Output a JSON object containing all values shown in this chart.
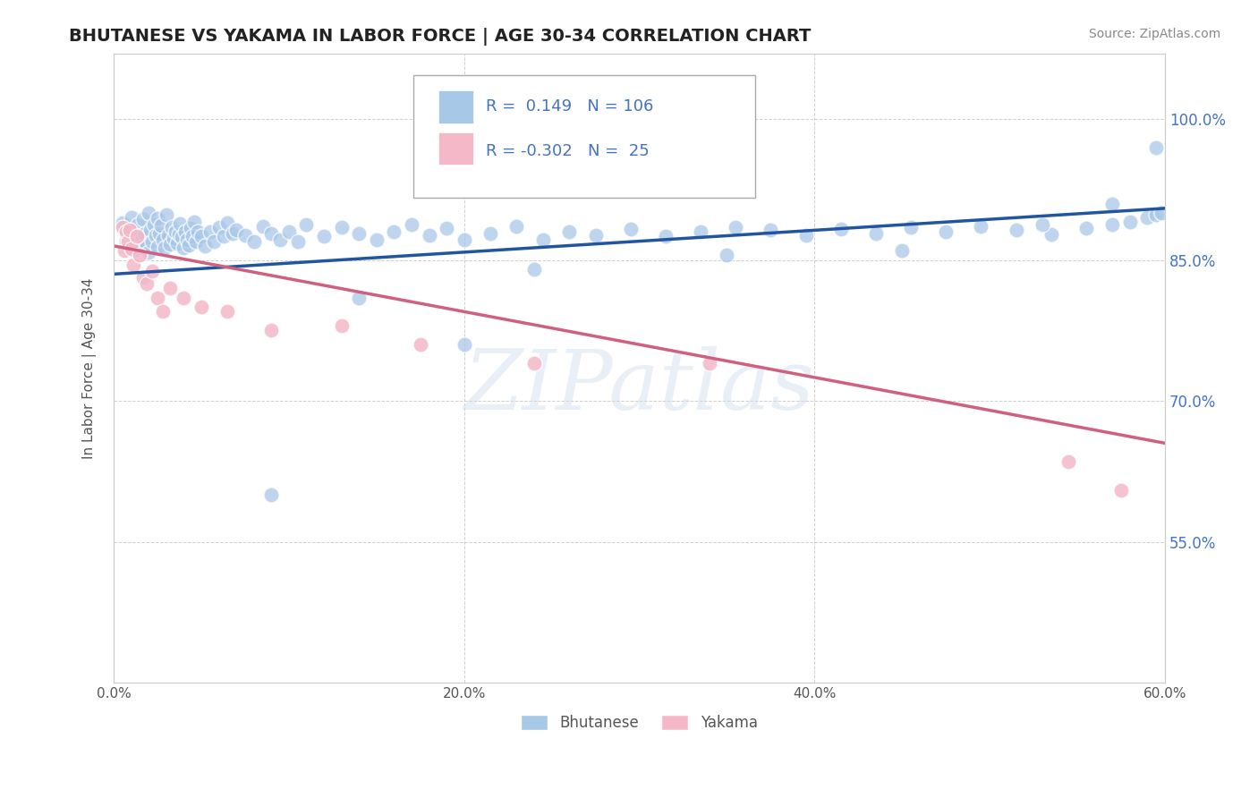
{
  "title": "BHUTANESE VS YAKAMA IN LABOR FORCE | AGE 30-34 CORRELATION CHART",
  "source_text": "Source: ZipAtlas.com",
  "ylabel": "In Labor Force | Age 30-34",
  "x_min": 0.0,
  "x_max": 0.6,
  "y_min": 0.4,
  "y_max": 1.07,
  "x_tick_vals": [
    0.0,
    0.2,
    0.4,
    0.6
  ],
  "y_tick_vals": [
    0.55,
    0.7,
    0.85,
    1.0
  ],
  "legend_labels": [
    "Bhutanese",
    "Yakama"
  ],
  "legend_R": [
    "0.149",
    "-0.302"
  ],
  "legend_N": [
    "106",
    "25"
  ],
  "blue_color": "#a8c8e8",
  "pink_color": "#f4b8c8",
  "blue_line_color": "#2155a0",
  "pink_line_color": "#d06080",
  "background_color": "#ffffff",
  "grid_color": "#bbbbbb",
  "watermark_text": "ZIPatlas",
  "blue_trend_x0": 0.0,
  "blue_trend_y0": 0.835,
  "blue_trend_x1": 0.6,
  "blue_trend_y1": 0.905,
  "pink_trend_x0": 0.0,
  "pink_trend_y0": 0.865,
  "pink_trend_x1": 0.6,
  "pink_trend_y1": 0.655,
  "blue_scatter_x": [
    0.005,
    0.007,
    0.008,
    0.009,
    0.01,
    0.01,
    0.011,
    0.012,
    0.013,
    0.014,
    0.015,
    0.016,
    0.017,
    0.018,
    0.019,
    0.02,
    0.02,
    0.021,
    0.022,
    0.023,
    0.024,
    0.025,
    0.025,
    0.026,
    0.027,
    0.028,
    0.029,
    0.03,
    0.031,
    0.032,
    0.033,
    0.034,
    0.035,
    0.036,
    0.037,
    0.038,
    0.039,
    0.04,
    0.041,
    0.042,
    0.043,
    0.044,
    0.045,
    0.046,
    0.047,
    0.048,
    0.05,
    0.052,
    0.055,
    0.057,
    0.06,
    0.063,
    0.065,
    0.068,
    0.07,
    0.075,
    0.08,
    0.085,
    0.09,
    0.095,
    0.1,
    0.105,
    0.11,
    0.12,
    0.13,
    0.14,
    0.15,
    0.16,
    0.17,
    0.18,
    0.19,
    0.2,
    0.215,
    0.23,
    0.245,
    0.26,
    0.275,
    0.295,
    0.315,
    0.335,
    0.355,
    0.375,
    0.395,
    0.415,
    0.435,
    0.455,
    0.475,
    0.495,
    0.515,
    0.535,
    0.555,
    0.57,
    0.58,
    0.59,
    0.595,
    0.598,
    0.14,
    0.24,
    0.35,
    0.45,
    0.53,
    0.57,
    0.595,
    0.09,
    0.2
  ],
  "blue_scatter_y": [
    0.89,
    0.87,
    0.88,
    0.865,
    0.875,
    0.895,
    0.86,
    0.882,
    0.872,
    0.888,
    0.876,
    0.864,
    0.893,
    0.878,
    0.865,
    0.9,
    0.858,
    0.882,
    0.87,
    0.888,
    0.876,
    0.864,
    0.894,
    0.878,
    0.887,
    0.872,
    0.863,
    0.898,
    0.876,
    0.867,
    0.885,
    0.873,
    0.88,
    0.868,
    0.877,
    0.889,
    0.874,
    0.863,
    0.88,
    0.872,
    0.866,
    0.884,
    0.875,
    0.891,
    0.87,
    0.88,
    0.875,
    0.865,
    0.88,
    0.87,
    0.885,
    0.875,
    0.89,
    0.878,
    0.882,
    0.876,
    0.87,
    0.886,
    0.878,
    0.872,
    0.88,
    0.87,
    0.888,
    0.875,
    0.885,
    0.878,
    0.872,
    0.88,
    0.888,
    0.876,
    0.884,
    0.872,
    0.878,
    0.886,
    0.872,
    0.88,
    0.876,
    0.883,
    0.875,
    0.88,
    0.885,
    0.882,
    0.876,
    0.883,
    0.878,
    0.885,
    0.88,
    0.886,
    0.882,
    0.877,
    0.884,
    0.888,
    0.891,
    0.895,
    0.898,
    0.9,
    0.81,
    0.84,
    0.855,
    0.86,
    0.888,
    0.91,
    0.97,
    0.6,
    0.76
  ],
  "pink_scatter_x": [
    0.005,
    0.006,
    0.007,
    0.008,
    0.009,
    0.01,
    0.011,
    0.013,
    0.015,
    0.017,
    0.019,
    0.022,
    0.025,
    0.028,
    0.032,
    0.04,
    0.05,
    0.065,
    0.09,
    0.13,
    0.175,
    0.24,
    0.34,
    0.545,
    0.575
  ],
  "pink_scatter_y": [
    0.885,
    0.86,
    0.88,
    0.87,
    0.882,
    0.862,
    0.845,
    0.875,
    0.855,
    0.832,
    0.825,
    0.838,
    0.81,
    0.795,
    0.82,
    0.81,
    0.8,
    0.795,
    0.775,
    0.78,
    0.76,
    0.74,
    0.74,
    0.635,
    0.605
  ]
}
